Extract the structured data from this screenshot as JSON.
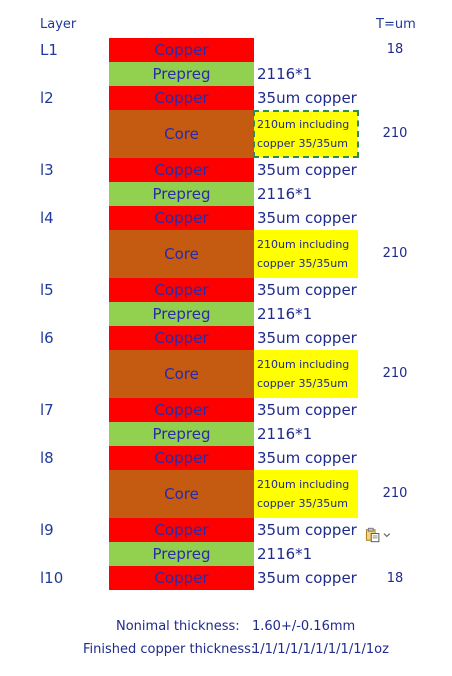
{
  "header": {
    "layer": "Layer",
    "unit": "T=um"
  },
  "layers": {
    "l1": "L1",
    "l2": "l2",
    "l3": "l3",
    "l4": "l4",
    "l5": "l5",
    "l6": "l6",
    "l7": "l7",
    "l8": "l8",
    "l9": "l9",
    "l10": "l10"
  },
  "materials": {
    "copper": "Copper",
    "prepreg": "Prepreg",
    "core": "Core"
  },
  "notes": {
    "prepreg": "2116*1",
    "copper": "35um copper",
    "core_line1": "210um including",
    "core_line2": "copper 35/35um"
  },
  "thickness": {
    "outer": "18",
    "core": "210"
  },
  "footer": {
    "nominal_label": "Nonimal thickness:",
    "nominal_value": "1.60+/-0.16mm",
    "finished_label": "Finished copper thickness:",
    "finished_value": "1/1/1/1/1/1/1/1/1/1oz"
  },
  "colors": {
    "copper": "#ff0000",
    "prepreg": "#92d050",
    "core": "#c55a11",
    "note_bg": "#ffff00"
  },
  "icons": {
    "paste": "paste-options-icon"
  }
}
